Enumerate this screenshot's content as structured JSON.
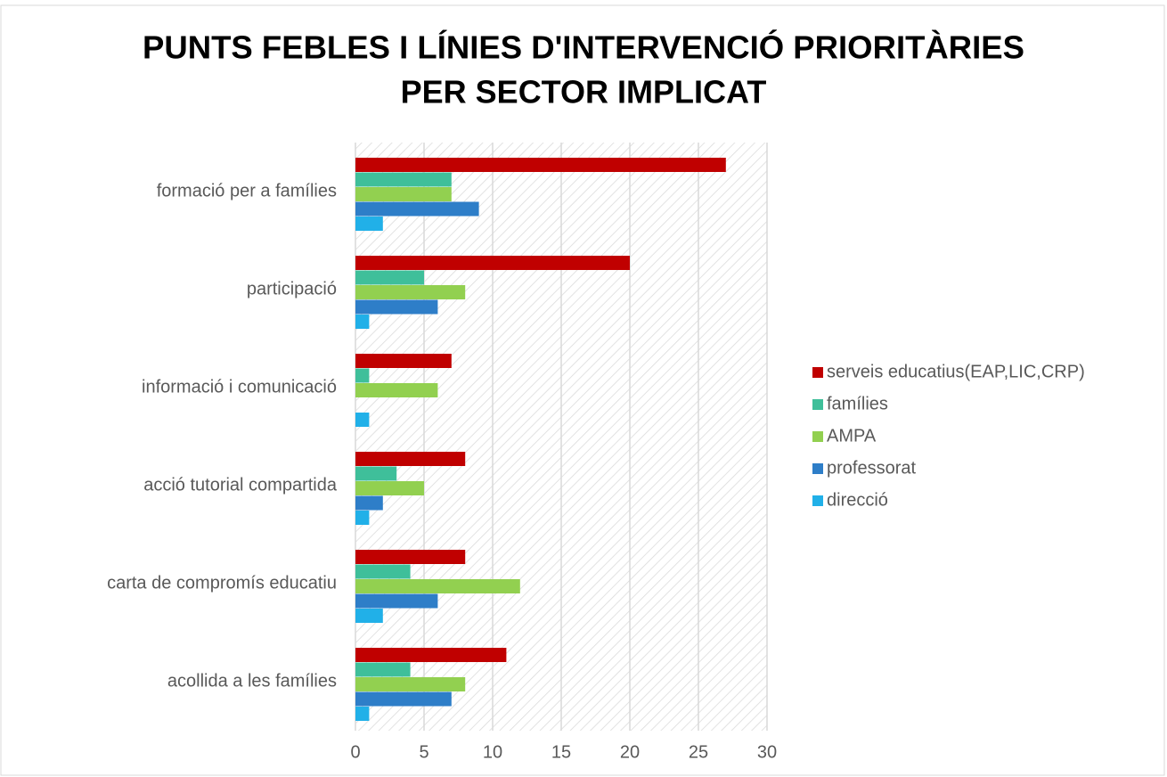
{
  "chart_data": {
    "type": "bar",
    "orientation": "horizontal",
    "title": [
      "PUNTS FEBLES I LÍNIES D'INTERVENCIÓ PRIORITÀRIES",
      "PER SECTOR IMPLICAT"
    ],
    "categories": [
      "formació per a famílies",
      "participació",
      "informació i comunicació",
      "acció tutorial compartida",
      "carta de compromís educatiu",
      "acollida a les famílies"
    ],
    "series": [
      {
        "name": "serveis educatius(EAP,LIC,CRP)",
        "color": "#c00000",
        "values": [
          27,
          20,
          7,
          8,
          8,
          11
        ]
      },
      {
        "name": "famílies",
        "color": "#3fbf9a",
        "values": [
          7,
          5,
          1,
          3,
          4,
          4
        ]
      },
      {
        "name": "AMPA",
        "color": "#92d050",
        "values": [
          7,
          8,
          6,
          5,
          12,
          8
        ]
      },
      {
        "name": "professorat",
        "color": "#2e7ec8",
        "values": [
          9,
          6,
          0,
          2,
          6,
          7
        ]
      },
      {
        "name": "direcció",
        "color": "#21b0e8",
        "values": [
          2,
          1,
          1,
          1,
          2,
          1
        ]
      }
    ],
    "xlim": [
      0,
      30
    ],
    "xticks": [
      0,
      5,
      10,
      15,
      20,
      25,
      30
    ],
    "grid": true,
    "legend": "right"
  }
}
